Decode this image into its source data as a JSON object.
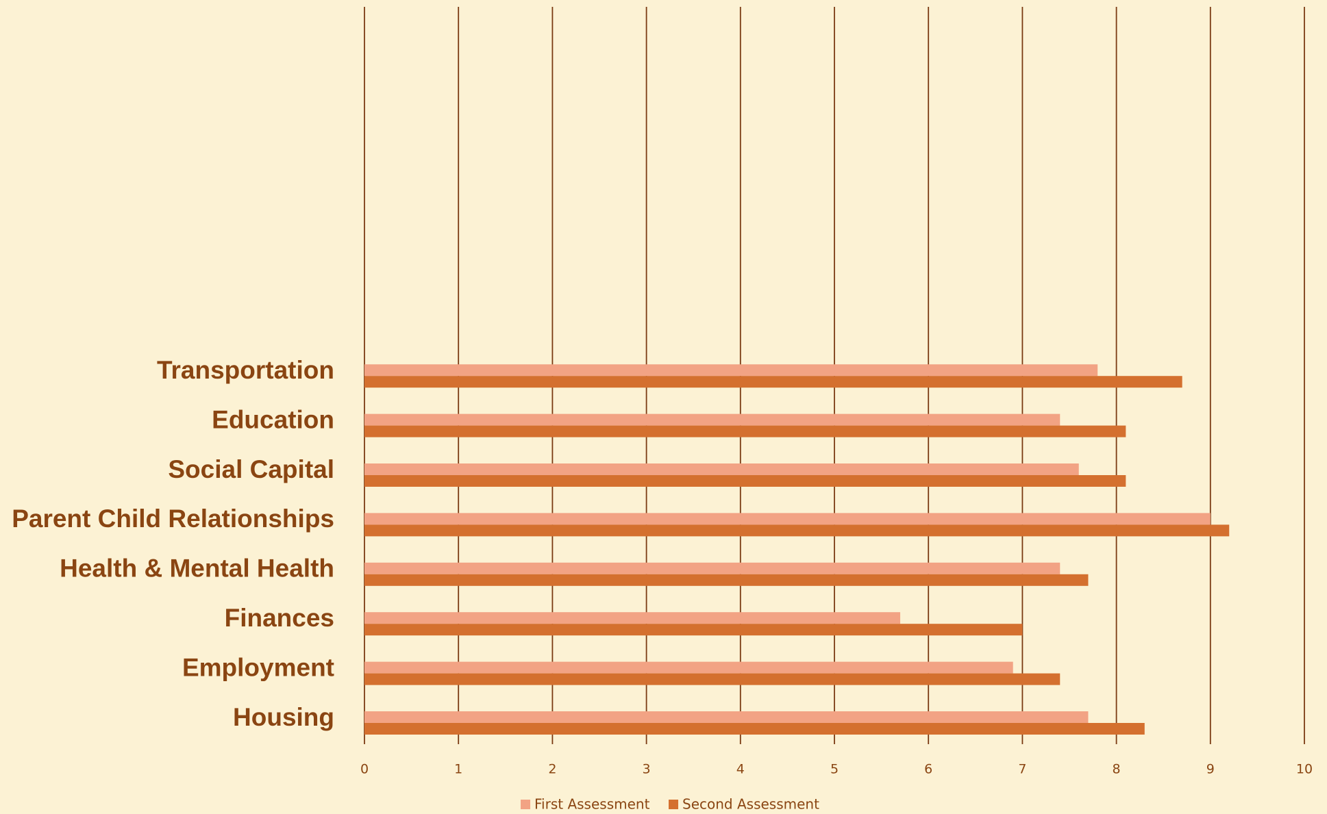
{
  "chart_data": {
    "type": "bar",
    "orientation": "horizontal",
    "categories": [
      "Transportation",
      "Education",
      "Social Capital",
      "Parent Child Relationships",
      "Health & Mental Health",
      "Finances",
      "Employment",
      "Housing"
    ],
    "series": [
      {
        "name": "First Assessment",
        "color": "#f2a384",
        "values": [
          7.8,
          7.4,
          7.6,
          9.0,
          7.4,
          5.7,
          6.9,
          7.7
        ]
      },
      {
        "name": "Second Assessment",
        "color": "#d4702f",
        "values": [
          8.7,
          8.1,
          8.1,
          9.2,
          7.7,
          7.0,
          7.4,
          8.3
        ]
      }
    ],
    "xlim": [
      0,
      10
    ],
    "xticks": [
      0,
      1,
      2,
      3,
      4,
      5,
      6,
      7,
      8,
      9,
      10
    ],
    "grid": true,
    "legend": "bottom"
  }
}
